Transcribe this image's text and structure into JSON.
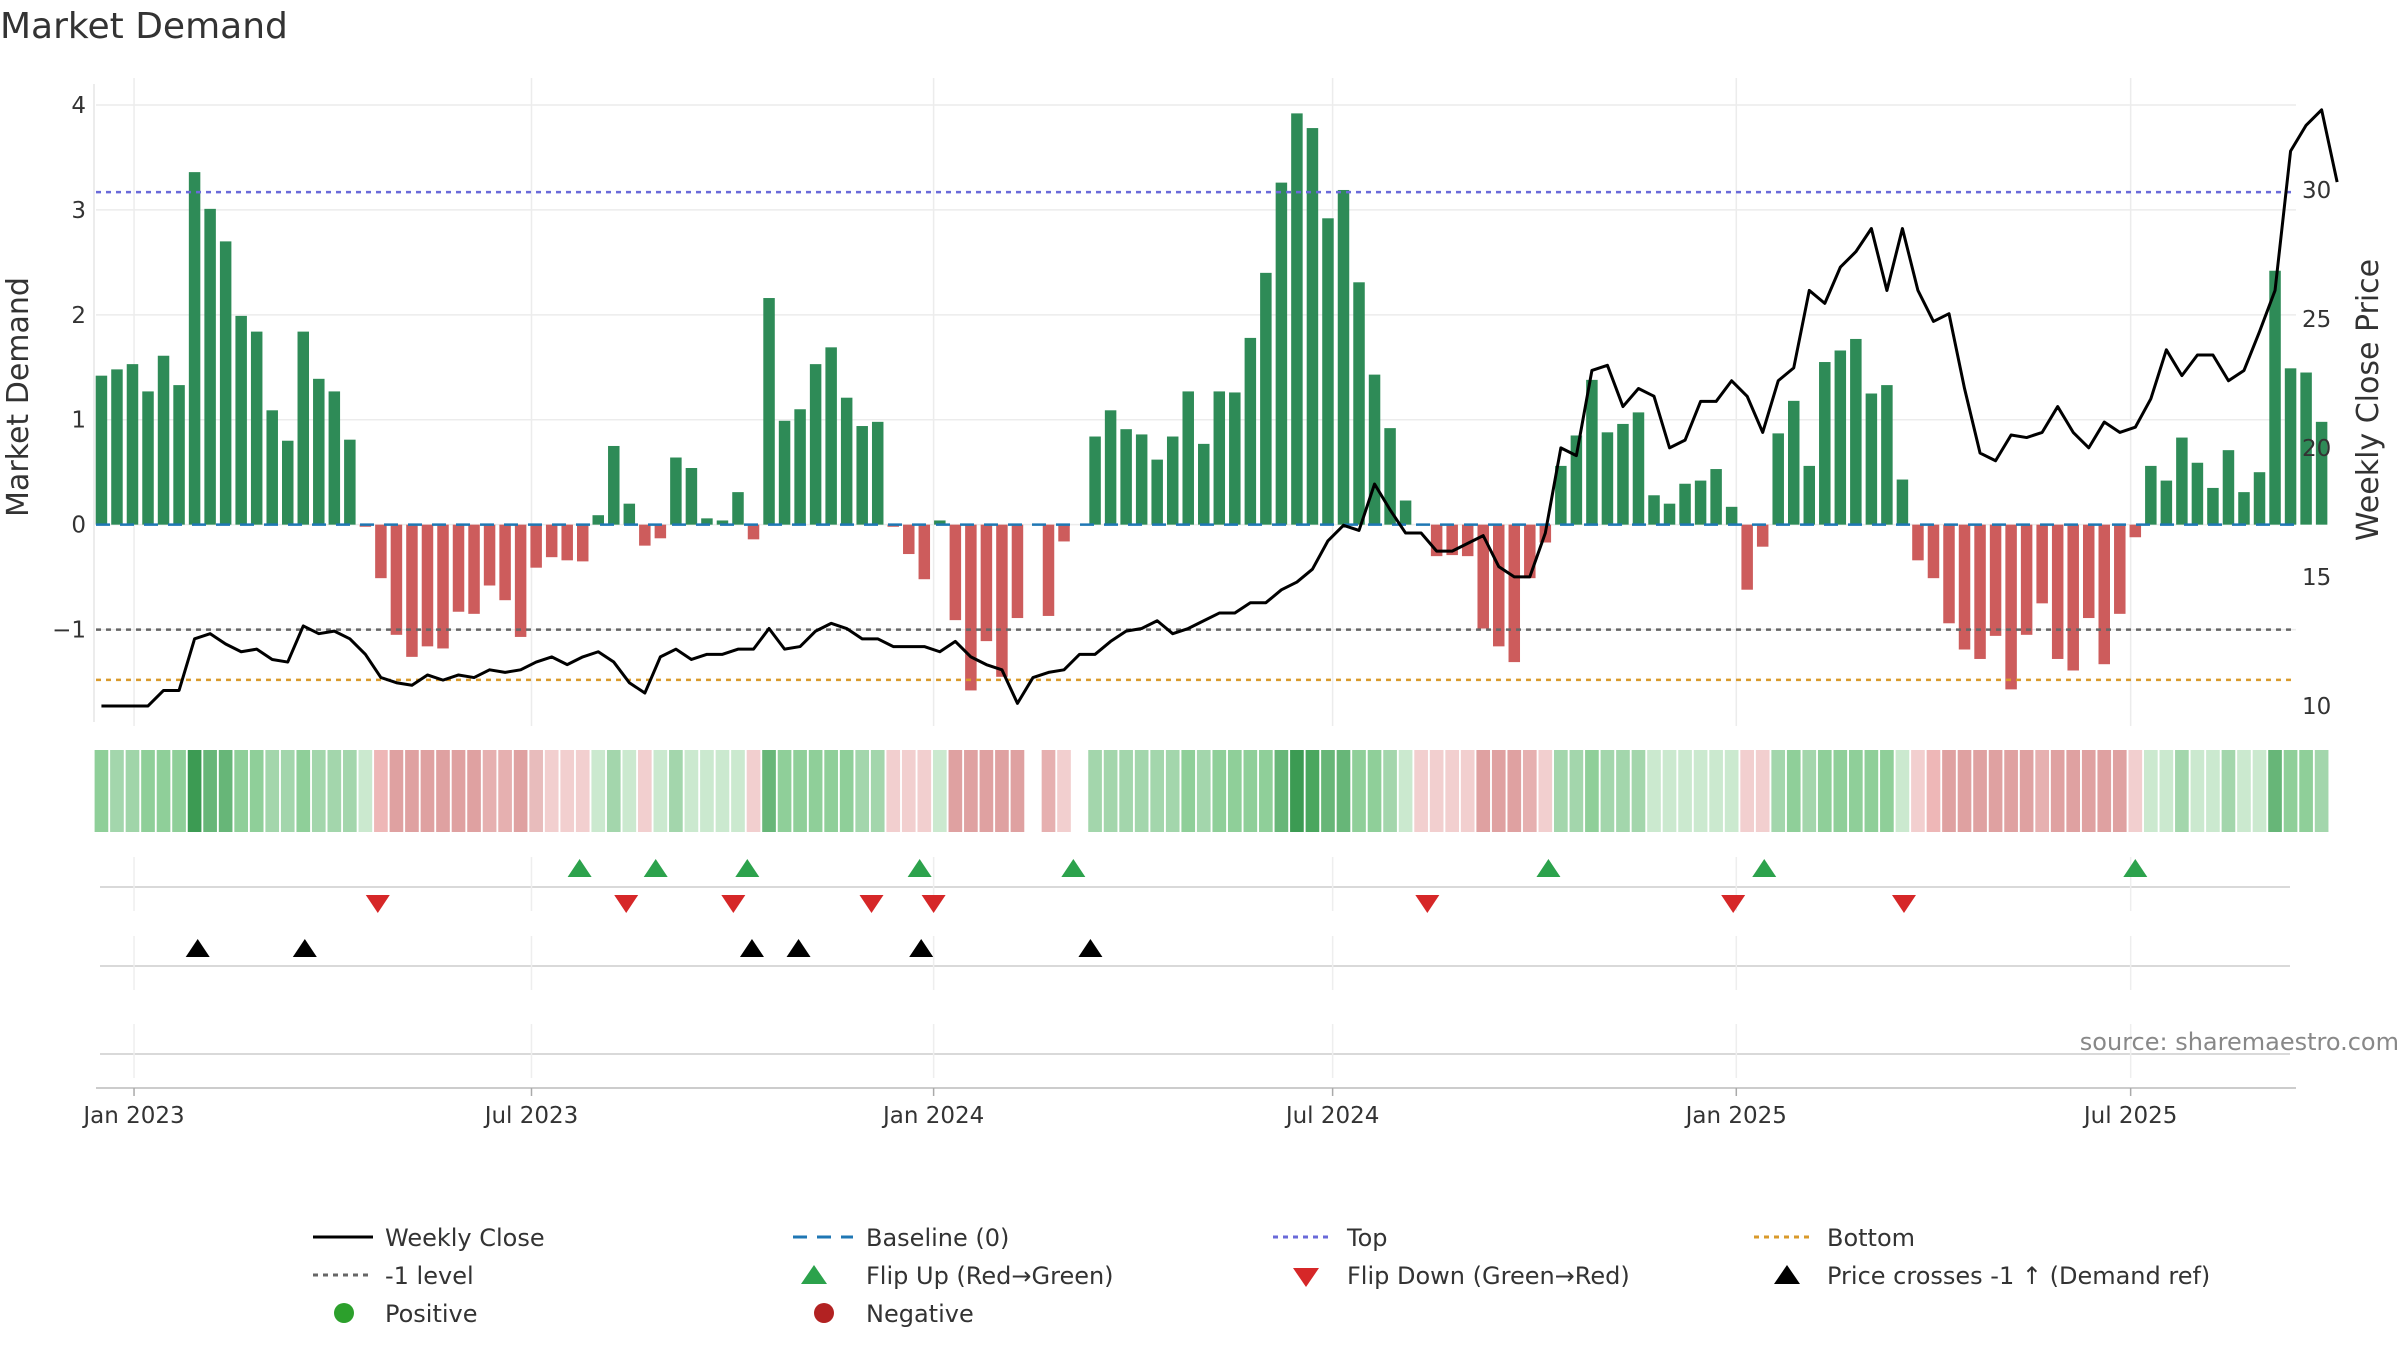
{
  "chart_data": {
    "type": "bar",
    "title": "Market Demand",
    "ylabel_left": "Market Demand",
    "ylabel_right": "Weekly Close Price",
    "source": "source: sharemaestro.com",
    "y_left": {
      "min": -1.9,
      "max": 4.2,
      "ticks": [
        4,
        3,
        2,
        1,
        0,
        -1
      ],
      "tick_labels": [
        "4",
        "3",
        "2",
        "1",
        "0",
        "−1"
      ]
    },
    "y_right": {
      "min": 9.3,
      "max": 34.1,
      "ticks": [
        30,
        25,
        20,
        15,
        10
      ],
      "tick_labels": [
        "30",
        "25",
        "20",
        "15",
        "10"
      ]
    },
    "x_range": [
      -0.35,
      141.35
    ],
    "x_ticks": [
      {
        "x": 2.1,
        "label": "Jan 2023"
      },
      {
        "x": 27.7,
        "label": "Jul 2023"
      },
      {
        "x": 53.6,
        "label": "Jan 2024"
      },
      {
        "x": 79.3,
        "label": "Jul 2024"
      },
      {
        "x": 105.3,
        "label": "Jan 2025"
      },
      {
        "x": 130.7,
        "label": "Jul 2025"
      }
    ],
    "levels": {
      "top": 3.17,
      "bottom": -1.48,
      "minus_one": -1,
      "baseline": 0
    },
    "demand": [
      1.42,
      1.48,
      1.53,
      1.27,
      1.61,
      1.33,
      3.36,
      3.01,
      2.7,
      1.99,
      1.84,
      1.09,
      0.8,
      1.84,
      1.39,
      1.27,
      0.81,
      -0.02,
      -0.51,
      -1.05,
      -1.26,
      -1.16,
      -1.18,
      -0.83,
      -0.85,
      -0.58,
      -0.72,
      -1.07,
      -0.41,
      -0.31,
      -0.34,
      -0.35,
      0.09,
      0.75,
      0.2,
      -0.2,
      -0.13,
      0.64,
      0.54,
      0.06,
      0.04,
      0.31,
      -0.14,
      2.16,
      0.99,
      1.1,
      1.53,
      1.69,
      1.21,
      0.94,
      0.98,
      -0.02,
      -0.28,
      -0.52,
      0.04,
      -0.91,
      -1.58,
      -1.11,
      -1.45,
      -0.89,
      0,
      -0.87,
      -0.16,
      0,
      0.84,
      1.09,
      0.91,
      0.86,
      0.62,
      0.84,
      1.27,
      0.77,
      1.27,
      1.26,
      1.78,
      2.4,
      3.26,
      3.92,
      3.78,
      2.92,
      3.19,
      2.31,
      1.43,
      0.92,
      0.23,
      0,
      -0.3,
      -0.29,
      -0.3,
      -0.99,
      -1.16,
      -1.31,
      -0.51,
      -0.17,
      0.56,
      0.85,
      1.38,
      0.88,
      0.96,
      1.07,
      0.28,
      0.2,
      0.39,
      0.42,
      0.53,
      0.17,
      -0.62,
      -0.21,
      0.87,
      1.18,
      0.56,
      1.55,
      1.66,
      1.77,
      1.25,
      1.33,
      0.43,
      -0.34,
      -0.51,
      -0.94,
      -1.19,
      -1.28,
      -1.06,
      -1.57,
      -1.05,
      -0.75,
      -1.28,
      -1.39,
      -0.89,
      -1.33,
      -0.85,
      -0.12,
      0.56,
      0.42,
      0.83,
      0.59,
      0.35,
      0.71,
      0.31,
      0.5,
      2.42,
      1.49,
      1.45,
      0.98
    ],
    "price": [
      10,
      10,
      10,
      10,
      10.6,
      10.6,
      12.6,
      12.8,
      12.4,
      12.1,
      12.2,
      11.8,
      11.7,
      13.1,
      12.8,
      12.9,
      12.6,
      12,
      11.1,
      10.9,
      10.8,
      11.2,
      11,
      11.2,
      11.1,
      11.4,
      11.3,
      11.4,
      11.7,
      11.9,
      11.6,
      11.9,
      12.1,
      11.7,
      10.9,
      10.5,
      11.9,
      12.2,
      11.8,
      12,
      12,
      12.2,
      12.2,
      13,
      12.2,
      12.3,
      12.9,
      13.2,
      13,
      12.6,
      12.6,
      12.3,
      12.3,
      12.3,
      12.1,
      12.5,
      11.9,
      11.6,
      11.4,
      10.1,
      11.1,
      11.3,
      11.4,
      12,
      12,
      12.5,
      12.9,
      13,
      13.3,
      12.8,
      13,
      13.3,
      13.6,
      13.6,
      14,
      14,
      14.5,
      14.8,
      15.3,
      16.4,
      17,
      16.8,
      18.6,
      17.6,
      16.7,
      16.7,
      16,
      16,
      16.3,
      16.6,
      15.4,
      15,
      15,
      16.7,
      20,
      19.7,
      23,
      23.2,
      21.6,
      22.3,
      22,
      20,
      20.3,
      21.8,
      21.8,
      22.6,
      22,
      20.6,
      22.6,
      23.1,
      26.1,
      25.6,
      27,
      27.6,
      28.5,
      26.1,
      28.5,
      26.1,
      24.9,
      25.2,
      22.3,
      19.8,
      19.5,
      20.5,
      20.4,
      20.6,
      21.6,
      20.6,
      20,
      21,
      20.6,
      20.8,
      21.9,
      23.8,
      22.8,
      23.6,
      23.6,
      22.6,
      23,
      24.5,
      26.1,
      31.5,
      32.5,
      33.1,
      30.3
    ],
    "strip": [
      "#8fcf99",
      "#a3d6ac",
      "#a0d5a9",
      "#8fcf99",
      "#8fcf99",
      "#8fcf99",
      "#3c9b53",
      "#67b678",
      "#67b678",
      "#8fcf99",
      "#8fcf99",
      "#a3d6ac",
      "#a3d6ac",
      "#8fcf99",
      "#a3d6ac",
      "#a3d6ac",
      "#a3d6ac",
      "#cbe9cf",
      "#eeb7b7",
      "#dfa1a1",
      "#dfa1a1",
      "#dfa1a1",
      "#dfa1a1",
      "#dfa1a1",
      "#dfa1a1",
      "#e6b0b0",
      "#e6b0b0",
      "#dfa1a1",
      "#e8bcbc",
      "#f2cfcf",
      "#f2cfcf",
      "#f2cfcf",
      "#cbe9cf",
      "#a3d6ac",
      "#cbe9cf",
      "#f2cfcf",
      "#cbe9cf",
      "#a3d6ac",
      "#cbe9cf",
      "#cbe9cf",
      "#cbe9cf",
      "#cbe9cf",
      "#f2cfcf",
      "#67b678",
      "#8fcf99",
      "#8fcf99",
      "#8fcf99",
      "#8fcf99",
      "#8fcf99",
      "#a3d6ac",
      "#a3d6ac",
      "#f2cfcf",
      "#f2cfcf",
      "#f2cfcf",
      "#cbe9cf",
      "#dfa1a1",
      "#dfa1a1",
      "#dfa1a1",
      "#dfa1a1",
      "#dfa1a1",
      "#ffffff",
      "#e6b0b0",
      "#f2cfcf",
      "#ffffff",
      "#a3d6ac",
      "#a3d6ac",
      "#a3d6ac",
      "#a3d6ac",
      "#a3d6ac",
      "#a3d6ac",
      "#8fcf99",
      "#a3d6ac",
      "#8fcf99",
      "#8fcf99",
      "#8fcf99",
      "#8fcf99",
      "#67b678",
      "#3c9b53",
      "#4aa75f",
      "#67b678",
      "#67b678",
      "#8fcf99",
      "#8fcf99",
      "#a3d6ac",
      "#cbe9cf",
      "#f2cfcf",
      "#f2cfcf",
      "#f2cfcf",
      "#f2cfcf",
      "#dfa1a1",
      "#dfa1a1",
      "#dfa1a1",
      "#e6b0b0",
      "#f2cfcf",
      "#a3d6ac",
      "#a3d6ac",
      "#8fcf99",
      "#a3d6ac",
      "#a3d6ac",
      "#a3d6ac",
      "#cbe9cf",
      "#cbe9cf",
      "#cbe9cf",
      "#cbe9cf",
      "#cbe9cf",
      "#cbe9cf",
      "#f2cfcf",
      "#f2cfcf",
      "#a3d6ac",
      "#8fcf99",
      "#a3d6ac",
      "#8fcf99",
      "#8fcf99",
      "#8fcf99",
      "#8fcf99",
      "#8fcf99",
      "#cbe9cf",
      "#f2cfcf",
      "#eeb7b7",
      "#dfa1a1",
      "#dfa1a1",
      "#dfa1a1",
      "#dfa1a1",
      "#dfa1a1",
      "#dfa1a1",
      "#e6b0b0",
      "#dfa1a1",
      "#dfa1a1",
      "#dfa1a1",
      "#dfa1a1",
      "#dfa1a1",
      "#f2cfcf",
      "#cbe9cf",
      "#cbe9cf",
      "#a3d6ac",
      "#cbe9cf",
      "#cbe9cf",
      "#a3d6ac",
      "#cbe9cf",
      "#cbe9cf",
      "#67b678",
      "#8fcf99",
      "#8fcf99",
      "#a3d6ac"
    ],
    "flip_up": [
      30.8,
      35.7,
      41.6,
      52.7,
      62.6,
      93.2,
      107.1,
      131
    ],
    "flip_down": [
      17.8,
      33.8,
      40.7,
      49.6,
      53.6,
      85.4,
      105.1,
      116.1
    ],
    "price_cross": [
      6.2,
      13.1,
      41.9,
      44.9,
      52.8,
      63.7
    ],
    "legend": [
      {
        "key": "weekly_close",
        "label": "Weekly Close"
      },
      {
        "key": "baseline",
        "label": "Baseline (0)"
      },
      {
        "key": "top",
        "label": "Top"
      },
      {
        "key": "bottom",
        "label": "Bottom"
      },
      {
        "key": "minus_one",
        "label": "-1 level"
      },
      {
        "key": "flip_up",
        "label": "Flip Up (Red→Green)"
      },
      {
        "key": "flip_down",
        "label": "Flip Down (Green→Red)"
      },
      {
        "key": "price_cross",
        "label": "Price crosses -1 ↑ (Demand ref)"
      },
      {
        "key": "positive",
        "label": "Positive"
      },
      {
        "key": "negative",
        "label": "Negative"
      }
    ],
    "colors": {
      "positive_bar": "#2e8b57",
      "negative_bar": "#cd5c5c",
      "price_line": "#000000",
      "baseline": "#1f77b4",
      "top": "#6a6ad9",
      "bottom": "#d99a2b",
      "minus_one": "#666666",
      "flip_up": "#2ca24c",
      "flip_down": "#d62728",
      "price_cross": "#000000",
      "positive_dot": "#2ca02c",
      "negative_dot": "#b22222",
      "grid": "#ececec"
    }
  }
}
